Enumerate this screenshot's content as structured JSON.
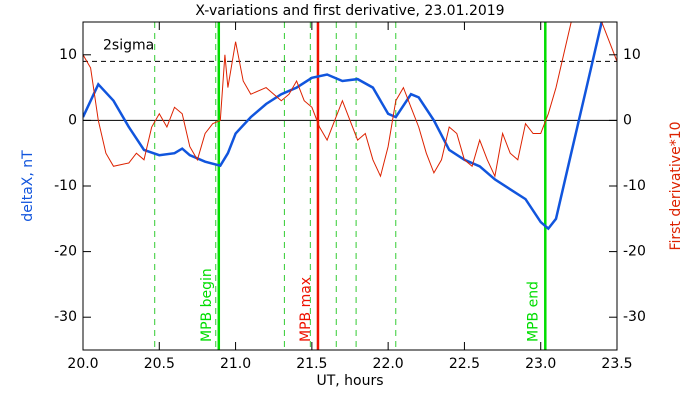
{
  "chart_data": {
    "type": "line",
    "title": "X-variations and first derivative, 23.01.2019",
    "x_label": "UT, hours",
    "y_label": "deltaX, nT",
    "y2_label": "First derivative*10",
    "xlim": [
      20.0,
      23.5
    ],
    "xticks": [
      {
        "value": 20,
        "label": "20.0"
      },
      {
        "value": 20.5,
        "label": "20.5"
      },
      {
        "value": 21,
        "label": "21.0"
      },
      {
        "value": 21.5,
        "label": "21.5"
      },
      {
        "value": 22,
        "label": "22.0"
      },
      {
        "value": 22.5,
        "label": "22.5"
      },
      {
        "value": 23,
        "label": "23.0"
      },
      {
        "value": 23.5,
        "label": "23.5"
      }
    ],
    "ylim": [
      -35,
      15
    ],
    "yticks": [
      -30,
      -20,
      -10,
      0,
      10
    ],
    "y2lim": [
      -35,
      15
    ],
    "y2ticks": [
      -30,
      -20,
      -10,
      0,
      10
    ],
    "threshold": {
      "label": "2sigma",
      "value": 9
    },
    "dashed_lines": [
      20.47,
      20.87,
      21.32,
      21.49,
      21.66,
      21.79,
      22.05
    ],
    "events": [
      {
        "label": "MPB begin",
        "x": 20.89,
        "color": "#00dd00"
      },
      {
        "label": "MPB max",
        "x": 21.54,
        "color": "#ee1100"
      },
      {
        "label": "MPB end",
        "x": 23.03,
        "color": "#00dd00"
      }
    ],
    "series": [
      {
        "name": "deltaX",
        "color": "#1155dd",
        "axis": "y",
        "x": [
          20.0,
          20.1,
          20.2,
          20.3,
          20.4,
          20.5,
          20.6,
          20.65,
          20.7,
          20.8,
          20.9,
          20.95,
          21.0,
          21.1,
          21.2,
          21.3,
          21.4,
          21.5,
          21.6,
          21.7,
          21.8,
          21.9,
          22.0,
          22.05,
          22.15,
          22.2,
          22.3,
          22.4,
          22.5,
          22.6,
          22.7,
          22.8,
          22.9,
          23.0,
          23.05,
          23.1,
          23.2,
          23.3,
          23.4
        ],
        "values": [
          0.5,
          5.5,
          3,
          -1,
          -4.5,
          -5.3,
          -5,
          -4.3,
          -5.3,
          -6.3,
          -6.9,
          -5,
          -2,
          0.5,
          2.5,
          4,
          5,
          6.5,
          7,
          6,
          6.3,
          5,
          1,
          0.5,
          4,
          3.5,
          0,
          -4.5,
          -6,
          -7,
          -9,
          -10.5,
          -12,
          -15.5,
          -16.5,
          -15,
          -5,
          5,
          15
        ]
      },
      {
        "name": "First derivative*10",
        "color": "#dd2200",
        "axis": "y2",
        "x": [
          20.0,
          20.05,
          20.1,
          20.15,
          20.2,
          20.3,
          20.35,
          20.4,
          20.45,
          20.5,
          20.55,
          20.6,
          20.65,
          20.7,
          20.75,
          20.8,
          20.85,
          20.9,
          20.93,
          20.95,
          21.0,
          21.05,
          21.1,
          21.2,
          21.3,
          21.35,
          21.4,
          21.45,
          21.5,
          21.55,
          21.6,
          21.65,
          21.7,
          21.75,
          21.8,
          21.85,
          21.9,
          21.95,
          22.0,
          22.05,
          22.1,
          22.15,
          22.2,
          22.25,
          22.3,
          22.35,
          22.4,
          22.45,
          22.5,
          22.55,
          22.6,
          22.65,
          22.7,
          22.75,
          22.8,
          22.85,
          22.9,
          22.95,
          23.0,
          23.05,
          23.1,
          23.15,
          23.2,
          23.4,
          23.5
        ],
        "values": [
          10,
          8,
          0,
          -5,
          -7,
          -6.5,
          -5,
          -6,
          -1,
          1,
          -1,
          2,
          1,
          -4,
          -6,
          -2,
          -0.5,
          0,
          10,
          5,
          12,
          6,
          4,
          5,
          3,
          4,
          6,
          3,
          2,
          -1,
          -3,
          0,
          3,
          0,
          -3,
          -2,
          -6,
          -8.5,
          -4,
          3,
          5,
          2,
          -1,
          -5,
          -8,
          -6,
          -1,
          -2,
          -6,
          -7,
          -3,
          -6,
          -8.5,
          -2,
          -5,
          -6,
          -0.5,
          -2,
          -2,
          1,
          5,
          10,
          15,
          15,
          9
        ]
      }
    ]
  }
}
